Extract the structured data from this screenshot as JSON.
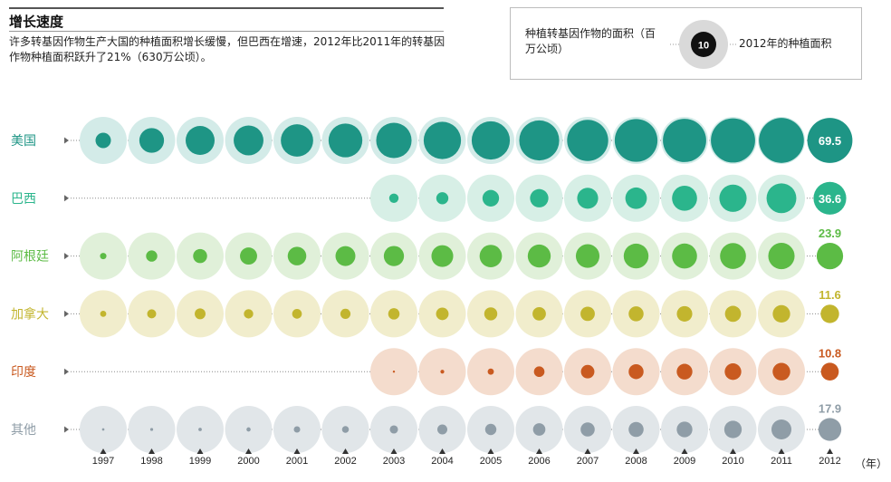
{
  "header": {
    "title": "增长速度",
    "subtitle": "许多转基因作物生产大国的种植面积增长缓慢，但巴西在增速，2012年比2011年的转基因作物种植面积跃升了21%（630万公顷）。"
  },
  "legend": {
    "title": "种植转基因作物的面积（百万公顷）",
    "sample_value": "10",
    "label": "2012年的种植面积"
  },
  "axis": {
    "unit": "（年）"
  },
  "chart_data": {
    "type": "scatter",
    "title": "增长速度",
    "x": [
      "1997",
      "1998",
      "1999",
      "2000",
      "2001",
      "2002",
      "2003",
      "2004",
      "2005",
      "2006",
      "2007",
      "2008",
      "2009",
      "2010",
      "2011",
      "2012"
    ],
    "xlabel": "（年）",
    "value_label_year": "2012",
    "series": [
      {
        "name": "美国",
        "color": "#1e9585",
        "halo": "#d3ebe8",
        "values": [
          8.1,
          20.8,
          28.7,
          30.3,
          35.7,
          39.0,
          42.8,
          47.6,
          49.8,
          54.6,
          57.7,
          62.5,
          64.0,
          66.8,
          69.0,
          69.5
        ],
        "label_2012": "69.5"
      },
      {
        "name": "巴西",
        "color": "#2bb58c",
        "halo": "#d7efe6",
        "values": [
          null,
          null,
          null,
          null,
          null,
          null,
          3.0,
          5.0,
          9.4,
          11.5,
          15.0,
          15.8,
          21.4,
          25.4,
          30.3,
          36.6
        ],
        "label_2012": "36.6"
      },
      {
        "name": "阿根廷",
        "color": "#5cbb45",
        "halo": "#e0f0d9",
        "values": [
          1.4,
          4.3,
          6.7,
          10.0,
          11.8,
          13.5,
          13.9,
          16.2,
          17.1,
          18.0,
          19.1,
          21.0,
          21.3,
          22.9,
          23.7,
          23.9
        ],
        "label_2012": "23.9"
      },
      {
        "name": "加拿大",
        "color": "#c2b52e",
        "halo": "#f1edcc",
        "values": [
          1.3,
          2.8,
          4.0,
          3.0,
          3.2,
          3.5,
          4.4,
          5.4,
          5.8,
          6.1,
          7.0,
          7.6,
          8.2,
          8.8,
          10.4,
          11.6
        ],
        "label_2012": "11.6"
      },
      {
        "name": "印度",
        "color": "#c95a20",
        "halo": "#f4dccd",
        "values": [
          null,
          null,
          null,
          null,
          null,
          null,
          0.1,
          0.5,
          1.3,
          3.8,
          6.2,
          7.6,
          8.4,
          9.4,
          10.6,
          10.8
        ],
        "label_2012": "10.8"
      },
      {
        "name": "其他",
        "color": "#8f9da7",
        "halo": "#e1e6e9",
        "values": [
          0.2,
          0.3,
          0.4,
          0.6,
          1.4,
          1.6,
          2.3,
          3.4,
          4.3,
          5.2,
          6.8,
          7.7,
          8.4,
          10.4,
          13.6,
          17.9
        ],
        "label_2012": "17.9"
      }
    ]
  }
}
